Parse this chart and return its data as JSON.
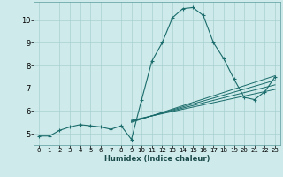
{
  "xlabel": "Humidex (Indice chaleur)",
  "background_color": "#ceeaea",
  "line_color": "#1a6b6b",
  "grid_color": "#aacfcf",
  "xlim": [
    -0.5,
    23.5
  ],
  "ylim": [
    4.5,
    10.8
  ],
  "yticks": [
    5,
    6,
    7,
    8,
    9,
    10
  ],
  "xticks": [
    0,
    1,
    2,
    3,
    4,
    5,
    6,
    7,
    8,
    9,
    10,
    11,
    12,
    13,
    14,
    15,
    16,
    17,
    18,
    19,
    20,
    21,
    22,
    23
  ],
  "series": [
    [
      0,
      4.9
    ],
    [
      1,
      4.9
    ],
    [
      2,
      5.15
    ],
    [
      3,
      5.3
    ],
    [
      4,
      5.4
    ],
    [
      5,
      5.35
    ],
    [
      6,
      5.3
    ],
    [
      7,
      5.2
    ],
    [
      8,
      5.35
    ],
    [
      9,
      4.75
    ],
    [
      10,
      6.5
    ],
    [
      11,
      8.2
    ],
    [
      12,
      9.0
    ],
    [
      13,
      10.1
    ],
    [
      14,
      10.5
    ],
    [
      15,
      10.55
    ],
    [
      16,
      10.2
    ],
    [
      17,
      9.0
    ],
    [
      18,
      8.3
    ],
    [
      19,
      7.4
    ],
    [
      20,
      6.6
    ],
    [
      21,
      6.5
    ],
    [
      22,
      6.85
    ],
    [
      23,
      7.5
    ]
  ],
  "flat_lines": [
    [
      [
        9,
        23
      ],
      [
        5.5,
        7.55
      ]
    ],
    [
      [
        9,
        23
      ],
      [
        5.53,
        7.35
      ]
    ],
    [
      [
        9,
        23
      ],
      [
        5.56,
        7.15
      ]
    ],
    [
      [
        9,
        23
      ],
      [
        5.59,
        6.95
      ]
    ]
  ]
}
